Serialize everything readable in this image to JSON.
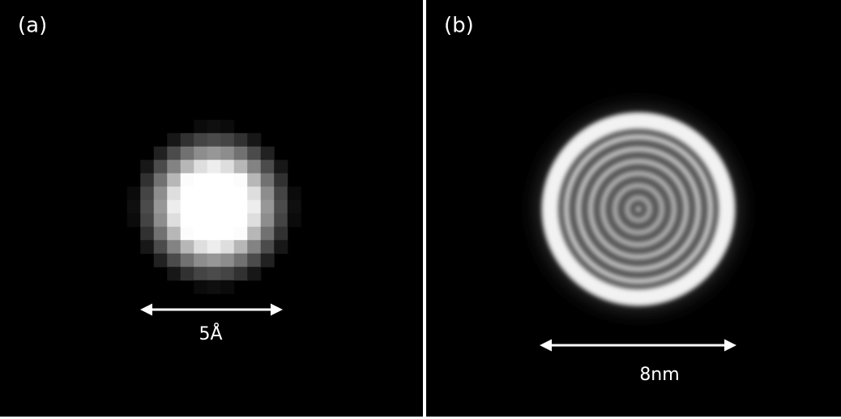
{
  "panels": [
    {
      "label": "(a)",
      "scale_label": "5Å"
    },
    {
      "label": "(b)",
      "scale_label": "8nm"
    }
  ]
}
